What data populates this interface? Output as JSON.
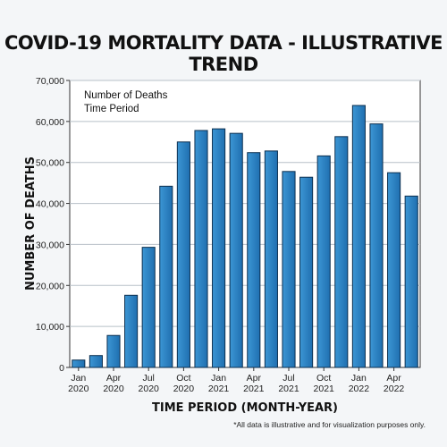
{
  "chart_data": {
    "type": "bar",
    "title": "COVID-19 MORTALITY DATA - ILLUSTRATIVE TREND",
    "xlabel": "TIME PERIOD (MONTH-YEAR)",
    "ylabel": "NUMBER OF DEATHS",
    "ylim": [
      0,
      70000
    ],
    "yticks": [
      0,
      10000,
      20000,
      30000,
      40000,
      50000,
      60000,
      70000
    ],
    "ytick_labels": [
      "0",
      "10,000",
      "20,000",
      "30,000",
      "40,000",
      "50,000",
      "60,000",
      "70,000"
    ],
    "grid": true,
    "legend_position": "top-left",
    "legend_lines": [
      "Number of Deaths",
      "Time Period"
    ],
    "bar_color": "#1f6fb0",
    "bar_color_light": "#3c96d4",
    "bar_edge": "#0c2f4f",
    "values": [
      1800,
      2900,
      7800,
      17600,
      29300,
      44200,
      55000,
      57800,
      58200,
      57100,
      52400,
      52800,
      47800,
      46400,
      51600,
      56300,
      63900,
      59400,
      47500,
      41800
    ],
    "tick_labels": [
      {
        "bar": 0,
        "month": "Jan",
        "year": "2020"
      },
      {
        "bar": 2,
        "month": "Apr",
        "year": "2020"
      },
      {
        "bar": 4,
        "month": "Jul",
        "year": "2020"
      },
      {
        "bar": 6,
        "month": "Oct",
        "year": "2020"
      },
      {
        "bar": 8,
        "month": "Jan",
        "year": "2021"
      },
      {
        "bar": 10,
        "month": "Apr",
        "year": "2021"
      },
      {
        "bar": 12,
        "month": "Jul",
        "year": "2021"
      },
      {
        "bar": 14,
        "month": "Oct",
        "year": "2021"
      },
      {
        "bar": 16,
        "month": "Jan",
        "year": "2022"
      },
      {
        "bar": 18,
        "month": "Apr",
        "year": "2022"
      }
    ]
  },
  "footnote": "*All data is illustrative and for visualization purposes only."
}
